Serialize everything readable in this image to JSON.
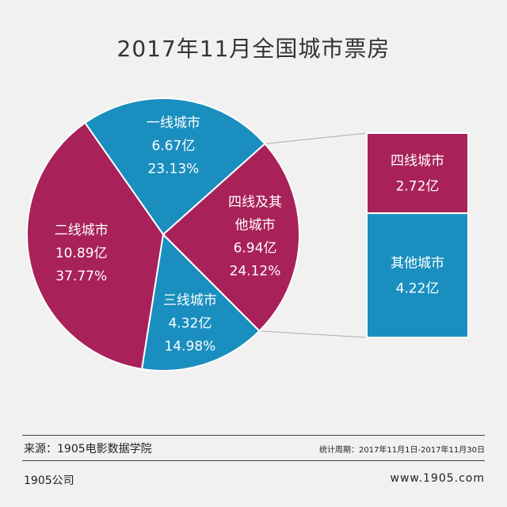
{
  "chart_data": {
    "type": "pie",
    "title": "2017年11月全国城市票房",
    "slices": [
      {
        "name": "一线城市",
        "value_text": "6.67亿",
        "value": 6.67,
        "percent_text": "23.13%",
        "percent": 23.13,
        "color": "#1a8fbf"
      },
      {
        "name": "四线及其他城市",
        "name_lines": [
          "四线及其",
          "他城市"
        ],
        "value_text": "6.94亿",
        "value": 6.94,
        "percent_text": "24.12%",
        "percent": 24.12,
        "color": "#a82259"
      },
      {
        "name": "三线城市",
        "value_text": "4.32亿",
        "value": 4.32,
        "percent_text": "14.98%",
        "percent": 14.98,
        "color": "#1a8fbf"
      },
      {
        "name": "二线城市",
        "value_text": "10.89亿",
        "value": 10.89,
        "percent_text": "37.77%",
        "percent": 37.77,
        "color": "#a82259"
      }
    ],
    "breakdown": {
      "parent": "四线及其他城市",
      "items": [
        {
          "name": "四线城市",
          "value_text": "2.72亿",
          "value": 2.72,
          "color": "#a82259"
        },
        {
          "name": "其他城市",
          "value_text": "4.22亿",
          "value": 4.22,
          "color": "#1a8fbf"
        }
      ]
    }
  },
  "footer": {
    "source": "来源：1905电影数据学院",
    "period": "统计周期：2017年11月1日-2017年11月30日",
    "company": "1905公司",
    "website": "www.1905.com"
  }
}
